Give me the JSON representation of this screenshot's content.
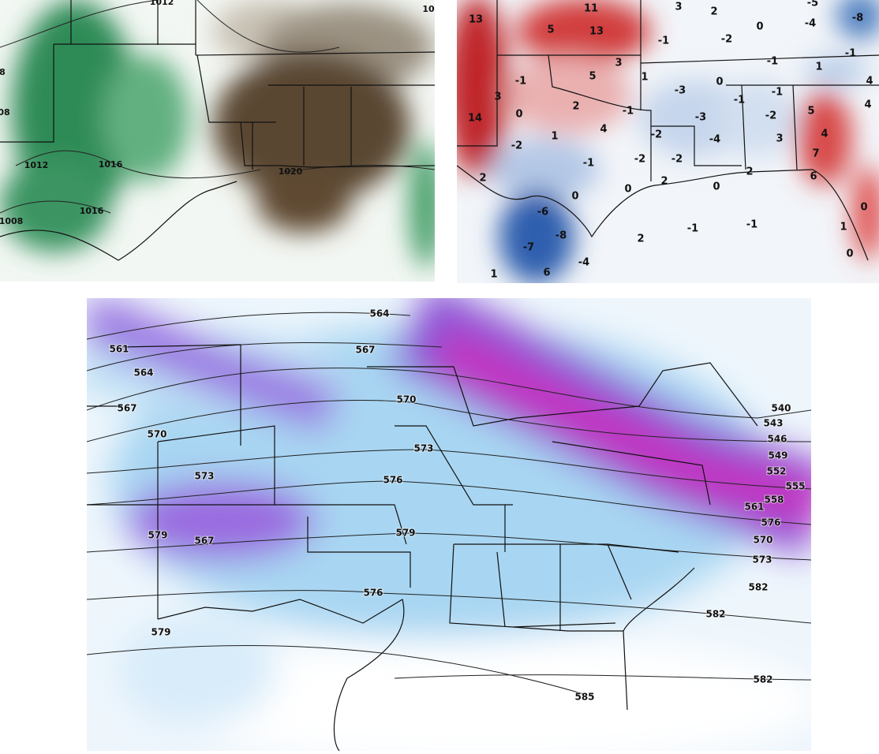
{
  "panels": [
    {
      "labels": [
        "1012",
        "8",
        "08",
        "1012",
        "1016",
        "1016",
        "1008",
        "1020",
        "10"
      ]
    },
    {
      "labels": [
        "13",
        "11",
        "3",
        "2",
        "-5",
        "-8",
        "5",
        "13",
        "-1",
        "-2",
        "0",
        "-4",
        "3",
        "-1",
        "1",
        "-1",
        "-1",
        "5",
        "1",
        "0",
        "-3",
        "-1",
        "4",
        "3",
        "-1",
        "5",
        "4",
        "14",
        "0",
        "2",
        "-1",
        "-3",
        "-2",
        "4",
        "1",
        "-2",
        "-4",
        "3",
        "4",
        "-2",
        "7",
        "-1",
        "-2",
        "-2",
        "2",
        "2",
        "0",
        "2",
        "6",
        "0",
        "0",
        "-6",
        "0",
        "-8",
        "2",
        "-1",
        "-1",
        "-7",
        "-4",
        "1",
        "6",
        "1",
        "0"
      ]
    },
    {
      "labels": [
        "564",
        "561",
        "567",
        "564",
        "567",
        "570",
        "570",
        "540",
        "543",
        "573",
        "546",
        "549",
        "573",
        "552",
        "576",
        "555",
        "558",
        "561",
        "576",
        "579",
        "579",
        "567",
        "570",
        "573",
        "582",
        "576",
        "582",
        "579",
        "582",
        "585"
      ]
    }
  ]
}
